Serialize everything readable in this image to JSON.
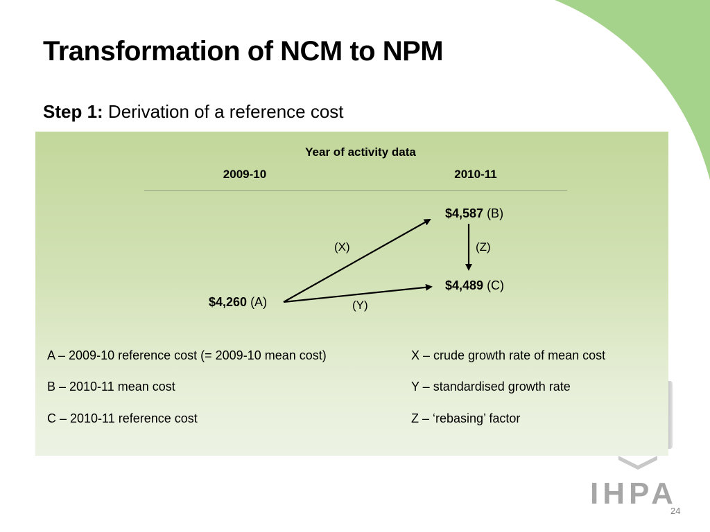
{
  "slide": {
    "title": "Transformation of NCM to NPM",
    "subtitle_bold": "Step 1:",
    "subtitle_rest": " Derivation of a reference cost",
    "page_number": "24"
  },
  "diagram": {
    "header": "Year of activity data",
    "col_left": "2009-10",
    "col_right": "2010-11",
    "node_a": {
      "value": "$4,260",
      "tag": " (A)"
    },
    "node_b": {
      "value": "$4,587",
      "tag": " (B)"
    },
    "node_c": {
      "value": "$4,489",
      "tag": " (C)"
    },
    "edge_x": "(X)",
    "edge_y": "(Y)",
    "edge_z": "(Z)"
  },
  "legend": {
    "a": "A – 2009-10 reference cost (= 2009-10 mean cost)",
    "b": "B – 2010-11 mean cost",
    "c": "C – 2010-11 reference cost",
    "x": "X – crude growth rate of mean cost",
    "y": "Y – standardised growth rate",
    "z": "Z – ‘rebasing’ factor"
  },
  "logo": {
    "text": "IHPA"
  },
  "colors": {
    "accent_green": "#a6d38b",
    "panel_green": "#c2d79b",
    "logo_gray": "#a6a6a6"
  }
}
